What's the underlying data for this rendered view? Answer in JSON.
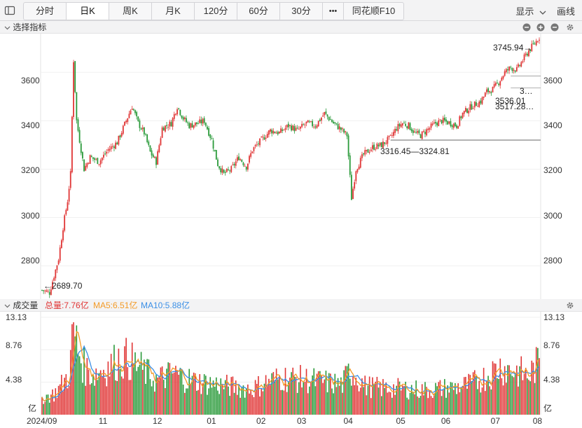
{
  "toolbar": {
    "tabs": [
      "分时",
      "日K",
      "周K",
      "月K",
      "120分",
      "60分",
      "30分",
      "•••",
      "同花顺F10"
    ],
    "active_tab": "日K",
    "display_label": "显示",
    "draw_label": "画线"
  },
  "price_panel": {
    "title": "选择指标",
    "y_ticks": [
      "3600",
      "3400",
      "3200",
      "3000",
      "2800"
    ],
    "annotations": {
      "high": "3745.94→",
      "low": "←2689.70",
      "gap_label": "3316.45—3324.81",
      "level_1": "3…",
      "level_2": "3536.01",
      "level_3": "3517.28…"
    }
  },
  "volume_panel": {
    "title": "成交量",
    "total": "总量:7.76亿",
    "ma5": "MA5:6.51亿",
    "ma10": "MA10:5.88亿",
    "y_ticks": [
      "13.13",
      "8.76",
      "4.38",
      "亿"
    ],
    "x_ticks": [
      "2024/09",
      "11",
      "12",
      "01",
      "02",
      "03",
      "04",
      "05",
      "06",
      "07",
      "08"
    ]
  },
  "colors": {
    "up": "#e03535",
    "down": "#2a9a3a",
    "ma5": "#f39a26",
    "ma10": "#3b8fe6",
    "total": "#e03535"
  },
  "chart_data": {
    "type": "candlestick",
    "ylim": [
      2660,
      3760
    ],
    "volume_ylim": [
      0,
      13.13
    ],
    "key_levels": [
      2689.7,
      3745.94,
      3316.45,
      3324.81,
      3517.28,
      3536.01
    ],
    "price_path": [
      [
        0,
        2700
      ],
      [
        5,
        2690
      ],
      [
        8,
        2760
      ],
      [
        11,
        2830
      ],
      [
        14,
        2960
      ],
      [
        17,
        3070
      ],
      [
        19,
        3180
      ],
      [
        21,
        3650
      ],
      [
        23,
        3400
      ],
      [
        25,
        3320
      ],
      [
        28,
        3200
      ],
      [
        32,
        3250
      ],
      [
        38,
        3230
      ],
      [
        44,
        3280
      ],
      [
        50,
        3310
      ],
      [
        56,
        3400
      ],
      [
        60,
        3460
      ],
      [
        64,
        3390
      ],
      [
        68,
        3350
      ],
      [
        72,
        3270
      ],
      [
        76,
        3230
      ],
      [
        80,
        3370
      ],
      [
        86,
        3390
      ],
      [
        90,
        3460
      ],
      [
        94,
        3410
      ],
      [
        98,
        3380
      ],
      [
        104,
        3390
      ],
      [
        108,
        3400
      ],
      [
        113,
        3320
      ],
      [
        117,
        3220
      ],
      [
        121,
        3180
      ],
      [
        126,
        3200
      ],
      [
        131,
        3250
      ],
      [
        136,
        3210
      ],
      [
        140,
        3280
      ],
      [
        146,
        3320
      ],
      [
        152,
        3360
      ],
      [
        158,
        3350
      ],
      [
        164,
        3380
      ],
      [
        170,
        3360
      ],
      [
        176,
        3390
      ],
      [
        182,
        3380
      ],
      [
        188,
        3430
      ],
      [
        194,
        3390
      ],
      [
        198,
        3370
      ],
      [
        203,
        3340
      ],
      [
        206,
        3080
      ],
      [
        209,
        3200
      ],
      [
        214,
        3260
      ],
      [
        220,
        3290
      ],
      [
        226,
        3300
      ],
      [
        232,
        3330
      ],
      [
        236,
        3370
      ],
      [
        240,
        3390
      ],
      [
        244,
        3380
      ],
      [
        248,
        3350
      ],
      [
        252,
        3340
      ],
      [
        258,
        3370
      ],
      [
        262,
        3390
      ],
      [
        266,
        3400
      ],
      [
        272,
        3390
      ],
      [
        276,
        3380
      ],
      [
        280,
        3430
      ],
      [
        286,
        3460
      ],
      [
        292,
        3480
      ],
      [
        296,
        3520
      ],
      [
        300,
        3530
      ],
      [
        304,
        3560
      ],
      [
        308,
        3600
      ],
      [
        312,
        3620
      ],
      [
        316,
        3610
      ],
      [
        320,
        3650
      ],
      [
        324,
        3690
      ],
      [
        328,
        3720
      ],
      [
        331,
        3745
      ]
    ],
    "volume_path": [
      [
        0,
        2.5
      ],
      [
        8,
        3.0
      ],
      [
        14,
        4.6
      ],
      [
        18,
        6.0
      ],
      [
        21,
        12.5
      ],
      [
        24,
        9.5
      ],
      [
        28,
        7.0
      ],
      [
        34,
        5.8
      ],
      [
        40,
        6.6
      ],
      [
        46,
        7.2
      ],
      [
        52,
        8.3
      ],
      [
        58,
        8.0
      ],
      [
        64,
        7.0
      ],
      [
        70,
        6.0
      ],
      [
        76,
        5.0
      ],
      [
        82,
        5.6
      ],
      [
        88,
        6.0
      ],
      [
        94,
        5.4
      ],
      [
        100,
        5.0
      ],
      [
        110,
        4.6
      ],
      [
        120,
        4.3
      ],
      [
        130,
        4.0
      ],
      [
        140,
        3.8
      ],
      [
        150,
        4.8
      ],
      [
        160,
        5.4
      ],
      [
        170,
        5.2
      ],
      [
        180,
        5.0
      ],
      [
        190,
        4.7
      ],
      [
        200,
        4.4
      ],
      [
        205,
        6.5
      ],
      [
        210,
        5.5
      ],
      [
        215,
        4.2
      ],
      [
        225,
        3.9
      ],
      [
        240,
        3.8
      ],
      [
        255,
        3.6
      ],
      [
        265,
        3.8
      ],
      [
        275,
        4.0
      ],
      [
        285,
        4.4
      ],
      [
        295,
        5.5
      ],
      [
        305,
        7.0
      ],
      [
        312,
        6.5
      ],
      [
        318,
        6.2
      ],
      [
        324,
        5.6
      ],
      [
        331,
        7.8
      ]
    ]
  }
}
